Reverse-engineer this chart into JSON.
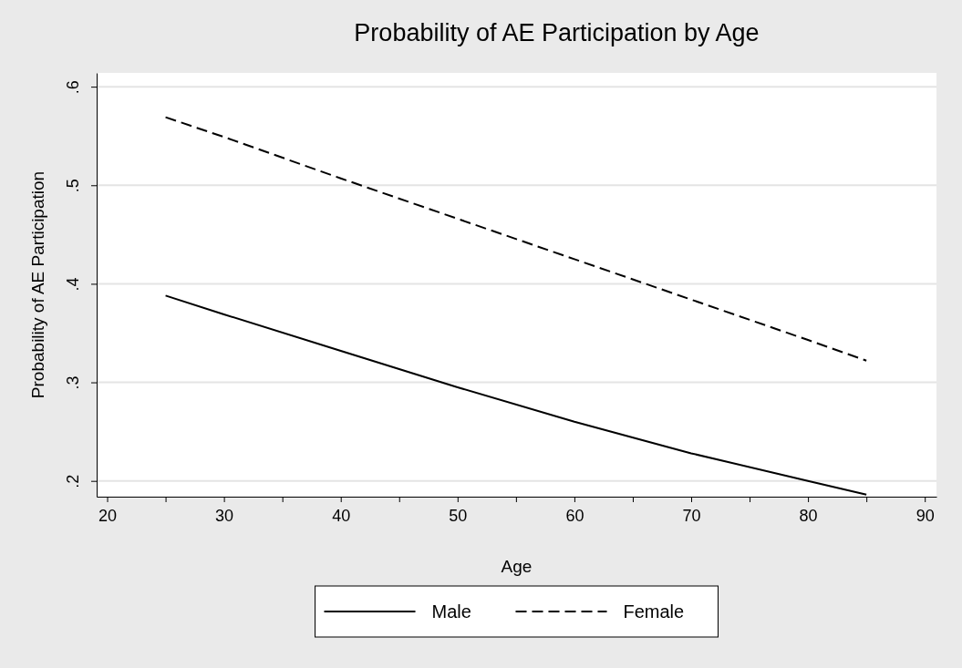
{
  "chart_data": {
    "type": "line",
    "title": "Probability of AE Participation by Age",
    "xlabel": "Age",
    "ylabel": "Probability of AE Participation",
    "x": [
      25,
      30,
      40,
      50,
      60,
      70,
      80,
      85
    ],
    "series": [
      {
        "name": "Male",
        "color": "#000000",
        "line_style": "solid",
        "values": [
          0.388,
          0.369,
          0.332,
          0.295,
          0.26,
          0.228,
          0.2,
          0.186
        ]
      },
      {
        "name": "Female",
        "color": "#000000",
        "line_style": "dashed",
        "values": [
          0.569,
          0.549,
          0.507,
          0.466,
          0.425,
          0.384,
          0.343,
          0.322
        ]
      }
    ],
    "xlim": [
      19.1,
      91
    ],
    "ylim": [
      0.184,
      0.614
    ],
    "xticks": [
      20,
      {
        "value": 25,
        "label": null
      },
      30,
      {
        "value": 35,
        "label": null
      },
      40,
      {
        "value": 45,
        "label": null
      },
      50,
      {
        "value": 55,
        "label": null
      },
      60,
      {
        "value": 65,
        "label": null
      },
      70,
      {
        "value": 75,
        "label": null
      },
      80,
      {
        "value": 85,
        "label": null
      },
      90
    ],
    "yticks": [
      {
        "value": 0.2,
        "label": ".2"
      },
      {
        "value": 0.3,
        "label": ".3"
      },
      {
        "value": 0.4,
        "label": ".4"
      },
      {
        "value": 0.5,
        "label": ".5"
      },
      {
        "value": 0.6,
        "label": ".6"
      }
    ],
    "grid": "y",
    "legend": "bottom",
    "marker": "none"
  }
}
